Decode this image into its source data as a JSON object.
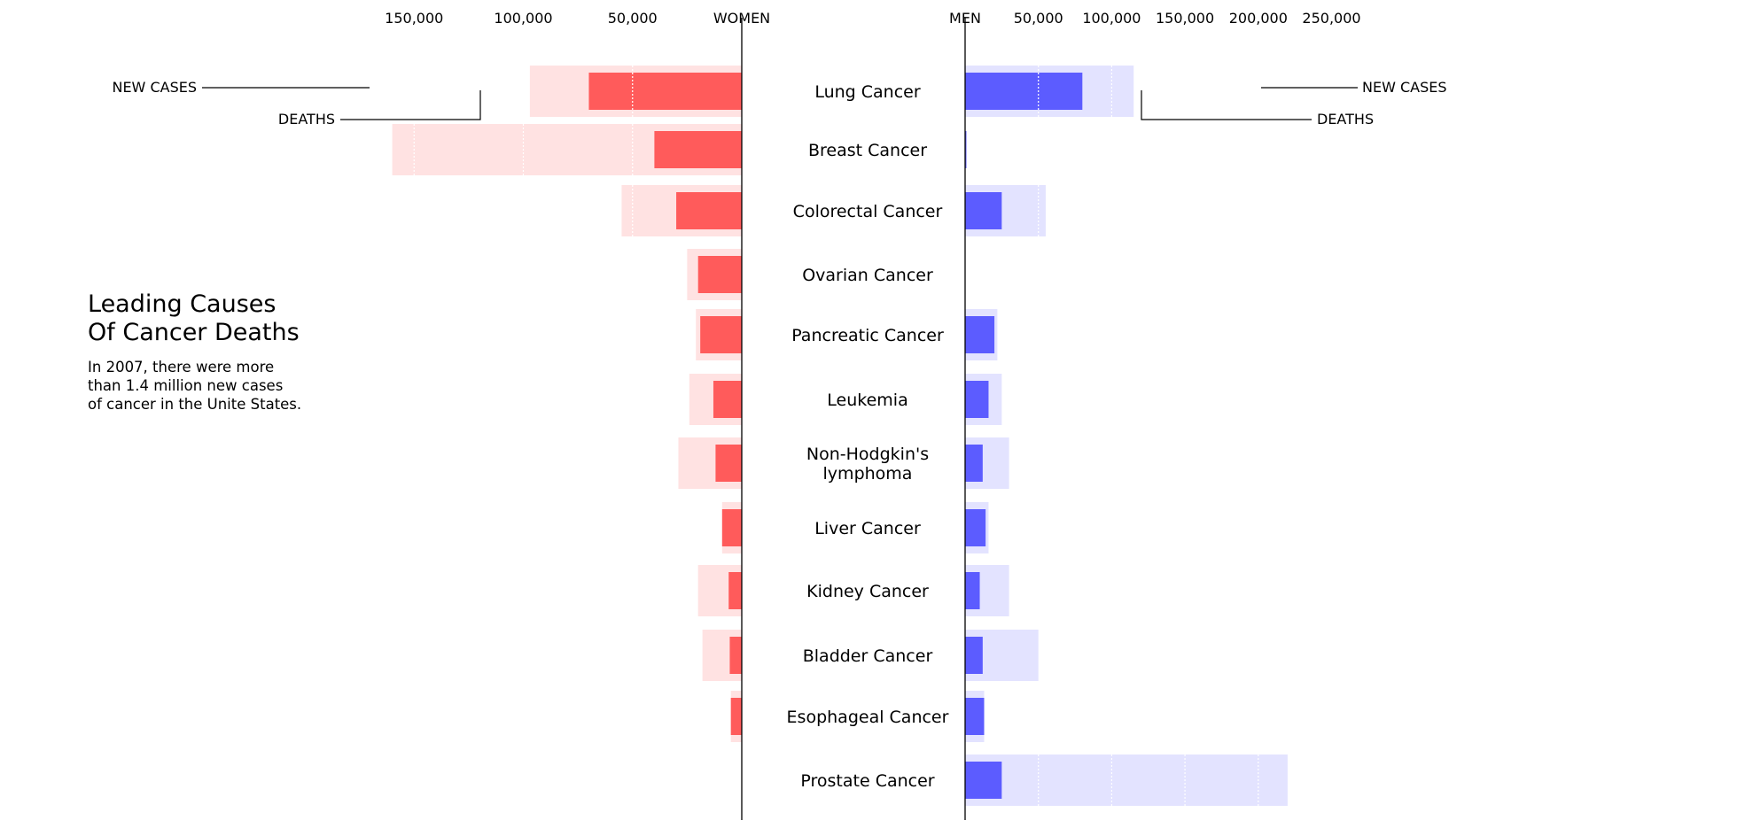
{
  "title_lines": [
    "Leading Causes",
    "Of Cancer Deaths"
  ],
  "description_lines": [
    "In 2007, there were more",
    "than 1.4 million new cases",
    "of cancer in the Unite States."
  ],
  "colors": {
    "women_deaths": "#FF5B5B",
    "women_new_cases": "#FFE2E2",
    "men_deaths": "#5C5CFF",
    "men_new_cases": "#E3E3FF",
    "axis": "#000000"
  },
  "chart_data": {
    "type": "bar",
    "orientation": "horizontal",
    "layout": "back-to-back",
    "panels": {
      "women": {
        "header": "WOMEN",
        "xlim": [
          0,
          160000
        ],
        "ticks": [
          {
            "value": 150000,
            "label": "150,000"
          },
          {
            "value": 100000,
            "label": "100,000"
          },
          {
            "value": 50000,
            "label": "50,000"
          }
        ]
      },
      "men": {
        "header": "MEN",
        "xlim": [
          0,
          260000
        ],
        "ticks": [
          {
            "value": 50000,
            "label": "50,000"
          },
          {
            "value": 100000,
            "label": "100,000"
          },
          {
            "value": 150000,
            "label": "150,000"
          },
          {
            "value": 200000,
            "label": "200,000"
          },
          {
            "value": 250000,
            "label": "250,000"
          }
        ]
      }
    },
    "categories": [
      {
        "lines": [
          "Lung Cancer"
        ]
      },
      {
        "lines": [
          "Breast Cancer"
        ]
      },
      {
        "lines": [
          "Colorectal Cancer"
        ]
      },
      {
        "lines": [
          "Ovarian Cancer"
        ]
      },
      {
        "lines": [
          "Pancreatic Cancer"
        ]
      },
      {
        "lines": [
          "Leukemia"
        ]
      },
      {
        "lines": [
          "Non-Hodgkin's",
          "lymphoma"
        ]
      },
      {
        "lines": [
          "Liver Cancer"
        ]
      },
      {
        "lines": [
          "Kidney Cancer"
        ]
      },
      {
        "lines": [
          "Bladder Cancer"
        ]
      },
      {
        "lines": [
          "Esophageal Cancer"
        ]
      },
      {
        "lines": [
          "Prostate Cancer"
        ]
      }
    ],
    "series": [
      {
        "name": "NEW CASES",
        "panel": "women",
        "values": [
          97000,
          160000,
          55000,
          25000,
          21000,
          24000,
          29000,
          9000,
          20000,
          18000,
          5000,
          0
        ]
      },
      {
        "name": "DEATHS",
        "panel": "women",
        "values": [
          70000,
          40000,
          30000,
          20000,
          19000,
          13000,
          12000,
          9000,
          6000,
          5500,
          5000,
          0
        ]
      },
      {
        "name": "NEW CASES",
        "panel": "men",
        "values": [
          115000,
          0,
          55000,
          0,
          22000,
          25000,
          30000,
          16000,
          30000,
          50000,
          13000,
          220000
        ]
      },
      {
        "name": "DEATHS",
        "panel": "men",
        "values": [
          80000,
          500,
          25000,
          0,
          20000,
          16000,
          12000,
          14000,
          10000,
          12000,
          13000,
          25000
        ]
      }
    ],
    "annotations": {
      "women": {
        "new_cases_label": "NEW CASES",
        "deaths_label": "DEATHS"
      },
      "men": {
        "new_cases_label": "NEW CASES",
        "deaths_label": "DEATHS"
      }
    },
    "grid": "white dotted lines at tick values",
    "legend": "inline callouts on the Lung Cancer row"
  }
}
